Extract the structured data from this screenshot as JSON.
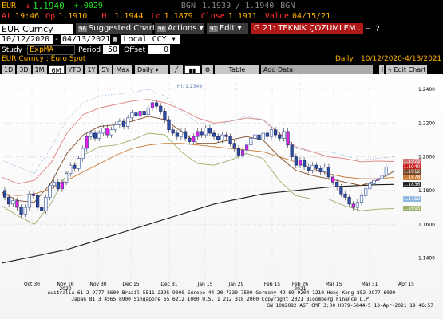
{
  "header": {
    "ticker": "EUR",
    "last": "1.1940",
    "change": "+.0029",
    "bgn": "BGN",
    "bid_ask": "1.1939 / 1.1940",
    "bgn2": "BGN",
    "at_label": "At",
    "time": "19:46",
    "op_label": "Op",
    "open": "1.1910",
    "hi_label": "Hi",
    "high": "1.1944",
    "lo_label": "Lo",
    "low": "1.1879",
    "close_label": "Close",
    "close": "1.1911",
    "value_label": "Value",
    "value_date": "04/15/21"
  },
  "toolbar": {
    "security": "EUR Curncy",
    "btn96": "96",
    "suggested": "Suggested Charts",
    "btn96b": "96",
    "actions": "Actions",
    "btn97": "97",
    "edit": "Edit",
    "function_title": "G 21: TEKNIK ÇOZUMLEM..."
  },
  "dates": {
    "start": "10/12/2020",
    "end": "04/13/2021",
    "ccy": "Local CCY"
  },
  "study": {
    "label": "Study",
    "value": "ExpMA",
    "period_label": "Period",
    "period": "50",
    "offset_label": "Offset",
    "offset": "0"
  },
  "subtitle": {
    "name": "EUR Curncy : Euro Spot",
    "freq": "Daily",
    "range": "10/12/2020-4/13/2021"
  },
  "ranges": [
    "1D",
    "3D",
    "1M",
    "6M",
    "YTD",
    "1Y",
    "5Y",
    "Max"
  ],
  "range_selected": "6M",
  "freq_select": "Daily",
  "table_btn": "Table",
  "add_data": "Add Data",
  "edit_chart": "Edit Chart",
  "icons": [
    "calendar-icon",
    "line-chart-icon",
    "bar-chart-icon",
    "settings-icon"
  ],
  "chart_data": {
    "type": "line",
    "hi_annotation": "Hi: 1.2349",
    "y_ticks": [
      "1.2400",
      "1.2200",
      "1.2000",
      "1.1800",
      "1.1600",
      "1.1400"
    ],
    "ylim": [
      1.128,
      1.248
    ],
    "x_ticks": [
      "Oct 30",
      "Nov 16",
      "Nov 30",
      "Dec 15",
      "Dec 31",
      "Jan 15",
      "Jan 29",
      "Feb 15",
      "Feb 26",
      "Mar 15",
      "Mar 31",
      "Apr 15"
    ],
    "year_labels": [
      {
        "label": "2020",
        "at": "Nov 16"
      },
      {
        "label": "2021",
        "at": "Feb 26"
      }
    ],
    "price_tags": [
      {
        "value": "1.1972",
        "color": "#d07070"
      },
      {
        "value": "1.1940",
        "color": "#cc2020"
      },
      {
        "value": "1.1912",
        "color": "#7a4a2a"
      },
      {
        "value": "1.1878",
        "color": "#c87830"
      },
      {
        "value": "1.1836",
        "color": "#222222"
      },
      {
        "value": "1.1752",
        "color": "#8fb8e0"
      },
      {
        "value": "1.1693",
        "color": "#9ab06a"
      }
    ],
    "series": [
      {
        "color": "#1a1a1a",
        "values": [
          1.137,
          1.139,
          1.141,
          1.143,
          1.145,
          1.148,
          1.151,
          1.154,
          1.157,
          1.16,
          1.163,
          1.166,
          1.169,
          1.172,
          1.174,
          1.176,
          1.178,
          1.179,
          1.18,
          1.181,
          1.182,
          1.1825,
          1.183,
          1.1834,
          1.1836
        ]
      },
      {
        "color": "#c87830",
        "values": [
          1.178,
          1.177,
          1.178,
          1.181,
          1.186,
          1.191,
          1.196,
          1.201,
          1.205,
          1.207,
          1.208,
          1.208,
          1.207,
          1.206,
          1.205,
          1.204,
          1.203,
          1.2,
          1.197,
          1.193,
          1.19,
          1.188,
          1.187,
          1.187,
          1.1878
        ]
      },
      {
        "color": "#e08080",
        "values": [
          1.188,
          1.184,
          1.186,
          1.196,
          1.214,
          1.225,
          1.229,
          1.231,
          1.233,
          1.234,
          1.232,
          1.228,
          1.223,
          1.22,
          1.221,
          1.223,
          1.222,
          1.214,
          1.206,
          1.203,
          1.2,
          1.199,
          1.197,
          1.1975,
          1.1972
        ]
      },
      {
        "color": "#9ab06a",
        "values": [
          1.171,
          1.165,
          1.16,
          1.172,
          1.19,
          1.201,
          1.206,
          1.207,
          1.21,
          1.214,
          1.213,
          1.203,
          1.196,
          1.195,
          1.198,
          1.202,
          1.199,
          1.186,
          1.177,
          1.175,
          1.175,
          1.171,
          1.168,
          1.169,
          1.1693
        ]
      },
      {
        "color": "#7a4a2a",
        "values": [
          1.179,
          1.174,
          1.173,
          1.184,
          1.202,
          1.213,
          1.218,
          1.219,
          1.221,
          1.224,
          1.222,
          1.215,
          1.208,
          1.208,
          1.21,
          1.212,
          1.21,
          1.2,
          1.192,
          1.189,
          1.187,
          1.185,
          1.183,
          1.186,
          1.1912
        ]
      }
    ],
    "candles": [
      [
        1.18,
        1.176
      ],
      [
        1.176,
        1.172
      ],
      [
        1.172,
        1.174
      ],
      [
        1.174,
        1.17
      ],
      [
        1.17,
        1.166
      ],
      [
        1.166,
        1.17
      ],
      [
        1.17,
        1.178
      ],
      [
        1.178,
        1.177
      ],
      [
        1.177,
        1.17
      ],
      [
        1.17,
        1.168
      ],
      [
        1.168,
        1.176
      ],
      [
        1.176,
        1.183
      ],
      [
        1.183,
        1.185
      ],
      [
        1.185,
        1.181
      ],
      [
        1.181,
        1.185
      ],
      [
        1.185,
        1.19
      ],
      [
        1.19,
        1.195
      ],
      [
        1.195,
        1.193
      ],
      [
        1.193,
        1.199
      ],
      [
        1.199,
        1.205
      ],
      [
        1.205,
        1.212
      ],
      [
        1.212,
        1.214
      ],
      [
        1.214,
        1.211
      ],
      [
        1.211,
        1.214
      ],
      [
        1.214,
        1.217
      ],
      [
        1.217,
        1.213
      ],
      [
        1.213,
        1.216
      ],
      [
        1.216,
        1.219
      ],
      [
        1.219,
        1.221
      ],
      [
        1.221,
        1.218
      ],
      [
        1.218,
        1.223
      ],
      [
        1.223,
        1.226
      ],
      [
        1.226,
        1.224
      ],
      [
        1.224,
        1.227
      ],
      [
        1.227,
        1.225
      ],
      [
        1.225,
        1.229
      ],
      [
        1.229,
        1.232
      ],
      [
        1.232,
        1.23
      ],
      [
        1.23,
        1.227
      ],
      [
        1.227,
        1.222
      ],
      [
        1.222,
        1.216
      ],
      [
        1.216,
        1.214
      ],
      [
        1.214,
        1.212
      ],
      [
        1.212,
        1.215
      ],
      [
        1.215,
        1.211
      ],
      [
        1.211,
        1.209
      ],
      [
        1.209,
        1.212
      ],
      [
        1.212,
        1.215
      ],
      [
        1.215,
        1.213
      ],
      [
        1.213,
        1.217
      ],
      [
        1.217,
        1.214
      ],
      [
        1.214,
        1.212
      ],
      [
        1.212,
        1.21
      ],
      [
        1.21,
        1.213
      ],
      [
        1.213,
        1.212
      ],
      [
        1.212,
        1.208
      ],
      [
        1.208,
        1.205
      ],
      [
        1.205,
        1.201
      ],
      [
        1.201,
        1.204
      ],
      [
        1.204,
        1.207
      ],
      [
        1.207,
        1.211
      ],
      [
        1.211,
        1.213
      ],
      [
        1.213,
        1.21
      ],
      [
        1.21,
        1.214
      ],
      [
        1.214,
        1.212
      ],
      [
        1.212,
        1.216
      ],
      [
        1.216,
        1.213
      ],
      [
        1.213,
        1.211
      ],
      [
        1.211,
        1.215
      ],
      [
        1.215,
        1.207
      ],
      [
        1.207,
        1.2
      ],
      [
        1.2,
        1.195
      ],
      [
        1.195,
        1.198
      ],
      [
        1.198,
        1.194
      ],
      [
        1.194,
        1.192
      ],
      [
        1.192,
        1.195
      ],
      [
        1.195,
        1.193
      ],
      [
        1.193,
        1.191
      ],
      [
        1.191,
        1.194
      ],
      [
        1.194,
        1.188
      ],
      [
        1.188,
        1.185
      ],
      [
        1.185,
        1.182
      ],
      [
        1.182,
        1.178
      ],
      [
        1.178,
        1.176
      ],
      [
        1.176,
        1.172
      ],
      [
        1.172,
        1.17
      ],
      [
        1.17,
        1.173
      ],
      [
        1.173,
        1.177
      ],
      [
        1.177,
        1.181
      ],
      [
        1.181,
        1.184
      ],
      [
        1.184,
        1.186
      ],
      [
        1.186,
        1.187
      ],
      [
        1.187,
        1.189
      ],
      [
        1.189,
        1.194
      ]
    ]
  },
  "footer": {
    "line1": "Australia 61 2 9777 8600 Brazil 5511 2395 9000 Europe 44 20 7330 7500 Germany 49 69 9204 1210 Hong Kong 852 2977 6000",
    "line2": "Japan 81 3 4565 8900          Singapore 65 6212 1000         U.S. 1 212 318 2000        Copyright 2021 Bloomberg Finance L.P.",
    "line3": "SN 1082082 AST  GMT+3:00 H079-5844-5 13-Apr-2021 19:46:57"
  }
}
